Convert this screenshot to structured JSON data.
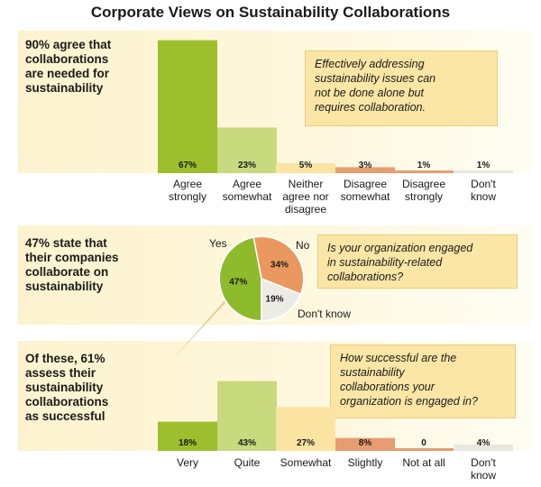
{
  "title": "Corporate Views on Sustainability Collaborations",
  "sections": [
    {
      "headline": [
        "90% agree that",
        "collaborations",
        "are needed for",
        "sustainability"
      ],
      "question": [
        "Effectively addressing",
        "sustainability issues can",
        "not be done alone but",
        "requires collaboration."
      ]
    },
    {
      "headline": [
        "47% state that",
        "their companies",
        "collaborate on",
        "sustainability"
      ],
      "question": [
        "Is your organization engaged",
        "in sustainability-related",
        "collaborations?"
      ]
    },
    {
      "headline": [
        "Of these, 61%",
        "assess their",
        "sustainability",
        "collaborations",
        "as successful"
      ],
      "question": [
        "How successful are the",
        "sustainability",
        "collaborations your",
        "organization is engaged in?"
      ]
    }
  ],
  "chart_data": [
    {
      "type": "bar",
      "categories": [
        [
          "Agree",
          "strongly"
        ],
        [
          "Agree",
          "somewhat"
        ],
        [
          "Neither",
          "agree nor",
          "disagree"
        ],
        [
          "Disagree",
          "somewhat"
        ],
        [
          "Disagree",
          "strongly"
        ],
        [
          "Don't",
          "know"
        ]
      ],
      "values": [
        67,
        23,
        5,
        3,
        1,
        1
      ],
      "labels": [
        "67%",
        "23%",
        "5%",
        "3%",
        "1%",
        "1%"
      ],
      "colors": [
        "#9dbf2e",
        "#c8d97e",
        "#fbe3a2",
        "#e89d70",
        "#e89d70",
        "#e8e8e0"
      ]
    },
    {
      "type": "pie",
      "slices": [
        {
          "name": "Yes",
          "value": 47,
          "label": "47%",
          "color": "#8dbb2c"
        },
        {
          "name": "No",
          "value": 34,
          "label": "34%",
          "color": "#eb9860"
        },
        {
          "name": "Don't know",
          "value": 19,
          "label": "19%",
          "color": "#ecebe4"
        }
      ]
    },
    {
      "type": "bar",
      "categories": [
        [
          "Very"
        ],
        [
          "Quite"
        ],
        [
          "Somewhat"
        ],
        [
          "Slightly"
        ],
        [
          "Not at all"
        ],
        [
          "Don't",
          "know"
        ]
      ],
      "values": [
        18,
        43,
        27,
        8,
        0,
        4
      ],
      "labels": [
        "18%",
        "43%",
        "27%",
        "8%",
        "0",
        "4%"
      ],
      "colors": [
        "#9dbf2e",
        "#c8d97e",
        "#fbe3a2",
        "#e89d70",
        "#e89d70",
        "#e8e8e0"
      ]
    }
  ]
}
